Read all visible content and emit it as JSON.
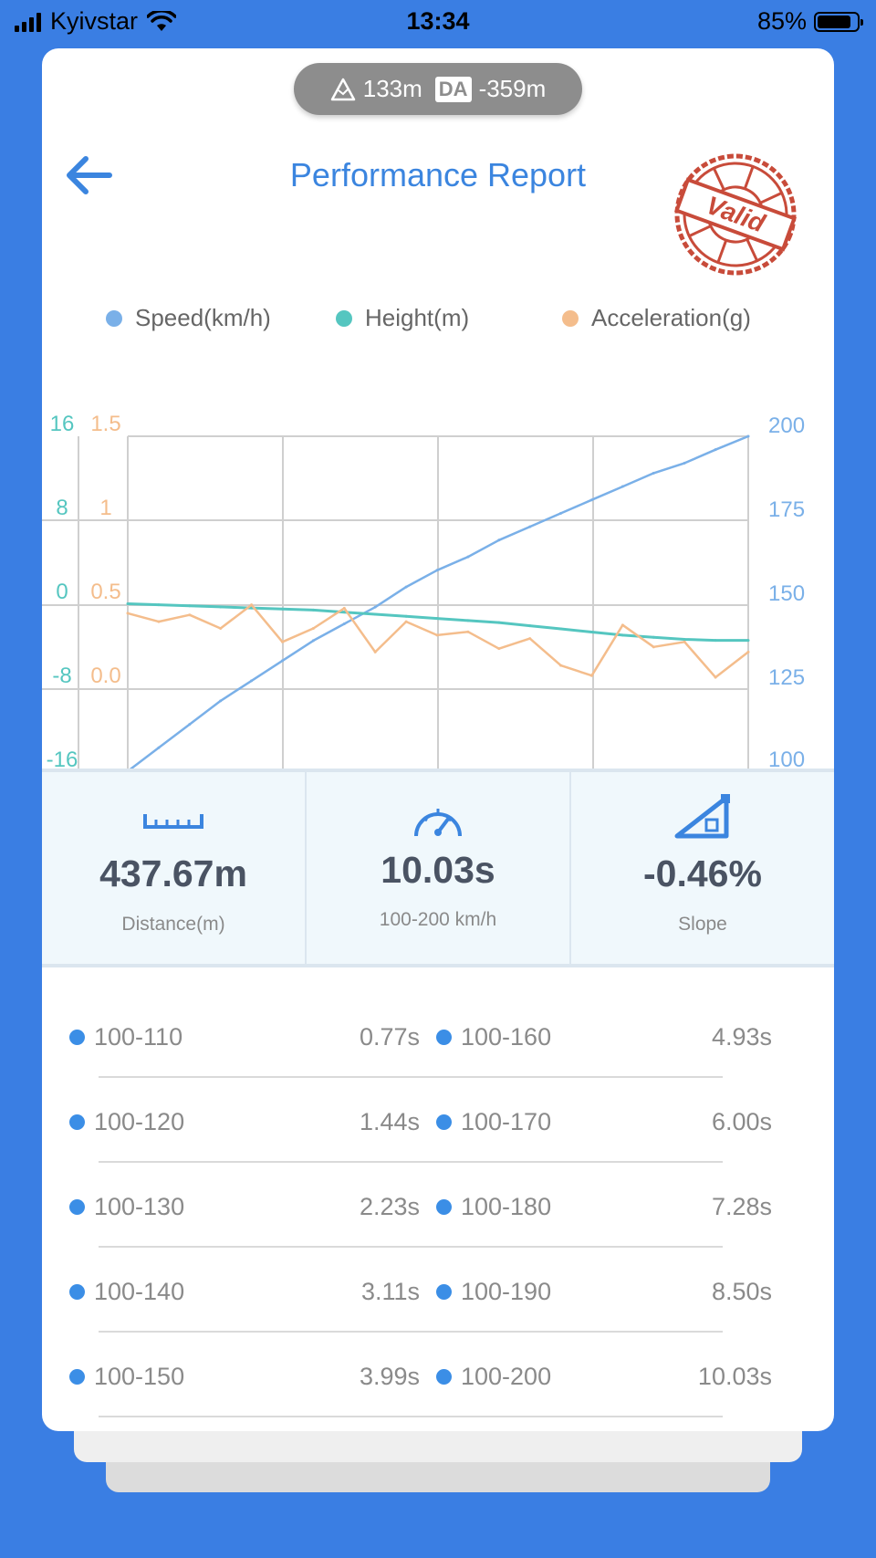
{
  "status_bar": {
    "carrier": "Kyivstar",
    "time": "13:34",
    "battery": "85%",
    "battery_level": 0.85
  },
  "header": {
    "altitude": "133m",
    "da_label": "DA",
    "density_altitude": "-359m",
    "title": "Performance Report",
    "stamp_text": "Valid"
  },
  "colors": {
    "speed": "#7ab0e8",
    "height": "#55c6c0",
    "acceleration": "#f4bd8c",
    "accent": "#3b85df",
    "stamp": "#c84b3a"
  },
  "chart_data": {
    "type": "line",
    "legend": [
      "Speed(km/h)",
      "Height(m)",
      "Acceleration(g)"
    ],
    "legend_position": "top",
    "grid": true,
    "axes": {
      "height_ticks": [
        "16",
        "8",
        "0",
        "-8",
        "-16"
      ],
      "acceleration_ticks": [
        "1.5",
        "1",
        "0.5",
        "0.0"
      ],
      "speed_ticks": [
        "200",
        "175",
        "150",
        "125",
        "100"
      ],
      "speed_range": [
        100,
        200
      ],
      "height_range": [
        -16,
        16
      ],
      "acceleration_range": [
        0.0,
        1.5
      ]
    },
    "x": [
      0,
      0.5,
      1,
      1.5,
      2,
      2.5,
      3,
      3.5,
      4,
      4.5,
      5,
      5.5,
      6,
      6.5,
      7,
      7.5,
      8,
      8.5,
      9,
      9.5,
      10.03
    ],
    "series": [
      {
        "name": "Speed(km/h)",
        "axis": "right",
        "values": [
          100,
          107,
          114,
          121,
          127,
          133,
          139,
          144,
          149,
          155,
          160,
          164,
          169,
          173,
          177,
          181,
          185,
          189,
          192,
          196,
          200
        ]
      },
      {
        "name": "Height(m)",
        "axis": "height",
        "values": [
          0.0,
          -0.1,
          -0.2,
          -0.3,
          -0.4,
          -0.5,
          -0.6,
          -0.8,
          -1.0,
          -1.2,
          -1.4,
          -1.6,
          -1.8,
          -2.1,
          -2.4,
          -2.7,
          -3.0,
          -3.2,
          -3.4,
          -3.5,
          -3.5
        ]
      },
      {
        "name": "Acceleration(g)",
        "axis": "acceleration",
        "values": [
          0.45,
          0.4,
          0.44,
          0.36,
          0.5,
          0.28,
          0.36,
          0.48,
          0.22,
          0.4,
          0.32,
          0.34,
          0.24,
          0.3,
          0.14,
          0.08,
          0.38,
          0.25,
          0.28,
          0.07,
          0.22
        ]
      }
    ]
  },
  "stats": {
    "distance": {
      "value": "437.67m",
      "label": "Distance(m)"
    },
    "time": {
      "value": "10.03s",
      "label": "100-200 km/h"
    },
    "slope": {
      "value": "-0.46%",
      "label": "Slope"
    }
  },
  "results": [
    {
      "label": "100-110",
      "value": "0.77s"
    },
    {
      "label": "100-120",
      "value": "1.44s"
    },
    {
      "label": "100-130",
      "value": "2.23s"
    },
    {
      "label": "100-140",
      "value": "3.11s"
    },
    {
      "label": "100-150",
      "value": "3.99s"
    },
    {
      "label": "100-160",
      "value": "4.93s"
    },
    {
      "label": "100-170",
      "value": "6.00s"
    },
    {
      "label": "100-180",
      "value": "7.28s"
    },
    {
      "label": "100-190",
      "value": "8.50s"
    },
    {
      "label": "100-200",
      "value": "10.03s"
    }
  ]
}
